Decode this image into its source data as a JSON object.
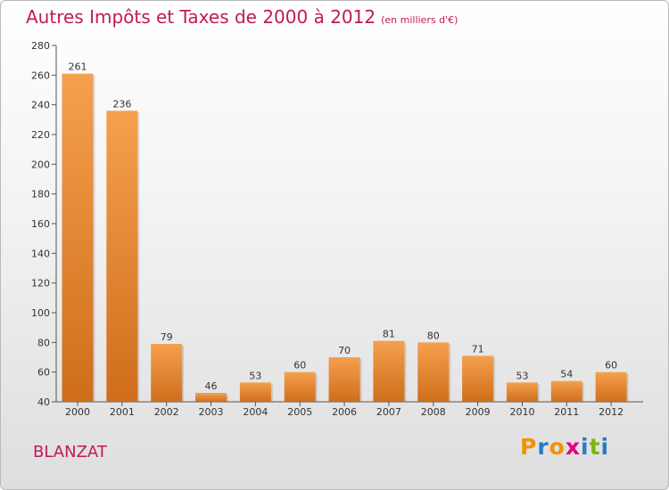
{
  "title": "Autres Impôts et Taxes de 2000 à 2012",
  "unit_note": "(en milliers d'€)",
  "place": "BLANZAT",
  "logo": [
    "P",
    "r",
    "o",
    "x",
    "i",
    "t",
    "i"
  ],
  "colors": {
    "title": "#c2185b",
    "bar_top": "#f5a04e",
    "bar_bottom": "#cf6e1a",
    "axis": "#555555"
  },
  "chart_data": {
    "type": "bar",
    "title": "Autres Impôts et Taxes de 2000 à 2012",
    "categories": [
      "2000",
      "2001",
      "2002",
      "2003",
      "2004",
      "2005",
      "2006",
      "2007",
      "2008",
      "2009",
      "2010",
      "2011",
      "2012"
    ],
    "values": [
      261,
      236,
      79,
      46,
      53,
      60,
      70,
      81,
      80,
      71,
      53,
      54,
      60
    ],
    "ylim": [
      40,
      280
    ],
    "yticks": [
      40,
      60,
      80,
      100,
      120,
      140,
      160,
      180,
      200,
      220,
      240,
      260,
      280
    ],
    "grid": false
  }
}
